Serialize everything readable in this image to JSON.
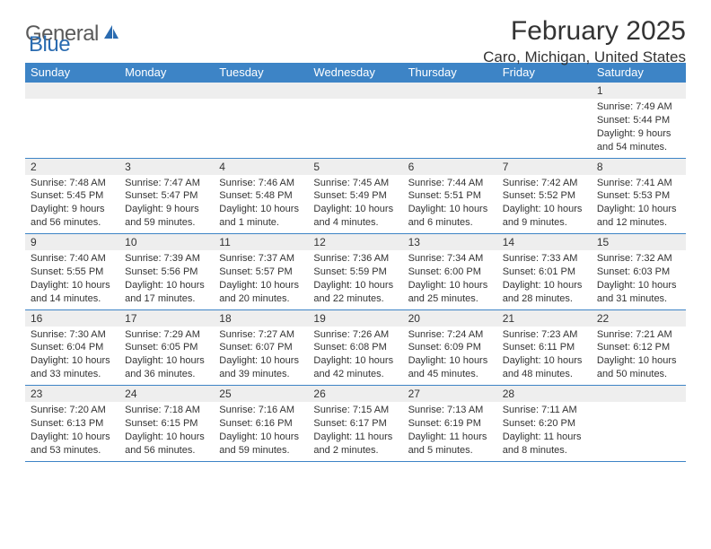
{
  "brand": {
    "text_gray": "General",
    "text_blue": "Blue",
    "gray_color": "#5a5a5a",
    "blue_color": "#2a6bb0",
    "icon_color": "#2a6bb0"
  },
  "header": {
    "month_title": "February 2025",
    "location": "Caro, Michigan, United States"
  },
  "styling": {
    "header_bg": "#3d84c6",
    "header_text": "#ffffff",
    "daynum_bg": "#eeeeee",
    "border_color": "#3d84c6",
    "body_text": "#333333",
    "dayhead_fontsize": 13,
    "daynum_fontsize": 12,
    "detail_fontsize": 11,
    "title_fontsize": 30,
    "location_fontsize": 17
  },
  "day_names": [
    "Sunday",
    "Monday",
    "Tuesday",
    "Wednesday",
    "Thursday",
    "Friday",
    "Saturday"
  ],
  "weeks": [
    [
      null,
      null,
      null,
      null,
      null,
      null,
      {
        "n": "1",
        "sr": "Sunrise: 7:49 AM",
        "ss": "Sunset: 5:44 PM",
        "dl": "Daylight: 9 hours and 54 minutes."
      }
    ],
    [
      {
        "n": "2",
        "sr": "Sunrise: 7:48 AM",
        "ss": "Sunset: 5:45 PM",
        "dl": "Daylight: 9 hours and 56 minutes."
      },
      {
        "n": "3",
        "sr": "Sunrise: 7:47 AM",
        "ss": "Sunset: 5:47 PM",
        "dl": "Daylight: 9 hours and 59 minutes."
      },
      {
        "n": "4",
        "sr": "Sunrise: 7:46 AM",
        "ss": "Sunset: 5:48 PM",
        "dl": "Daylight: 10 hours and 1 minute."
      },
      {
        "n": "5",
        "sr": "Sunrise: 7:45 AM",
        "ss": "Sunset: 5:49 PM",
        "dl": "Daylight: 10 hours and 4 minutes."
      },
      {
        "n": "6",
        "sr": "Sunrise: 7:44 AM",
        "ss": "Sunset: 5:51 PM",
        "dl": "Daylight: 10 hours and 6 minutes."
      },
      {
        "n": "7",
        "sr": "Sunrise: 7:42 AM",
        "ss": "Sunset: 5:52 PM",
        "dl": "Daylight: 10 hours and 9 minutes."
      },
      {
        "n": "8",
        "sr": "Sunrise: 7:41 AM",
        "ss": "Sunset: 5:53 PM",
        "dl": "Daylight: 10 hours and 12 minutes."
      }
    ],
    [
      {
        "n": "9",
        "sr": "Sunrise: 7:40 AM",
        "ss": "Sunset: 5:55 PM",
        "dl": "Daylight: 10 hours and 14 minutes."
      },
      {
        "n": "10",
        "sr": "Sunrise: 7:39 AM",
        "ss": "Sunset: 5:56 PM",
        "dl": "Daylight: 10 hours and 17 minutes."
      },
      {
        "n": "11",
        "sr": "Sunrise: 7:37 AM",
        "ss": "Sunset: 5:57 PM",
        "dl": "Daylight: 10 hours and 20 minutes."
      },
      {
        "n": "12",
        "sr": "Sunrise: 7:36 AM",
        "ss": "Sunset: 5:59 PM",
        "dl": "Daylight: 10 hours and 22 minutes."
      },
      {
        "n": "13",
        "sr": "Sunrise: 7:34 AM",
        "ss": "Sunset: 6:00 PM",
        "dl": "Daylight: 10 hours and 25 minutes."
      },
      {
        "n": "14",
        "sr": "Sunrise: 7:33 AM",
        "ss": "Sunset: 6:01 PM",
        "dl": "Daylight: 10 hours and 28 minutes."
      },
      {
        "n": "15",
        "sr": "Sunrise: 7:32 AM",
        "ss": "Sunset: 6:03 PM",
        "dl": "Daylight: 10 hours and 31 minutes."
      }
    ],
    [
      {
        "n": "16",
        "sr": "Sunrise: 7:30 AM",
        "ss": "Sunset: 6:04 PM",
        "dl": "Daylight: 10 hours and 33 minutes."
      },
      {
        "n": "17",
        "sr": "Sunrise: 7:29 AM",
        "ss": "Sunset: 6:05 PM",
        "dl": "Daylight: 10 hours and 36 minutes."
      },
      {
        "n": "18",
        "sr": "Sunrise: 7:27 AM",
        "ss": "Sunset: 6:07 PM",
        "dl": "Daylight: 10 hours and 39 minutes."
      },
      {
        "n": "19",
        "sr": "Sunrise: 7:26 AM",
        "ss": "Sunset: 6:08 PM",
        "dl": "Daylight: 10 hours and 42 minutes."
      },
      {
        "n": "20",
        "sr": "Sunrise: 7:24 AM",
        "ss": "Sunset: 6:09 PM",
        "dl": "Daylight: 10 hours and 45 minutes."
      },
      {
        "n": "21",
        "sr": "Sunrise: 7:23 AM",
        "ss": "Sunset: 6:11 PM",
        "dl": "Daylight: 10 hours and 48 minutes."
      },
      {
        "n": "22",
        "sr": "Sunrise: 7:21 AM",
        "ss": "Sunset: 6:12 PM",
        "dl": "Daylight: 10 hours and 50 minutes."
      }
    ],
    [
      {
        "n": "23",
        "sr": "Sunrise: 7:20 AM",
        "ss": "Sunset: 6:13 PM",
        "dl": "Daylight: 10 hours and 53 minutes."
      },
      {
        "n": "24",
        "sr": "Sunrise: 7:18 AM",
        "ss": "Sunset: 6:15 PM",
        "dl": "Daylight: 10 hours and 56 minutes."
      },
      {
        "n": "25",
        "sr": "Sunrise: 7:16 AM",
        "ss": "Sunset: 6:16 PM",
        "dl": "Daylight: 10 hours and 59 minutes."
      },
      {
        "n": "26",
        "sr": "Sunrise: 7:15 AM",
        "ss": "Sunset: 6:17 PM",
        "dl": "Daylight: 11 hours and 2 minutes."
      },
      {
        "n": "27",
        "sr": "Sunrise: 7:13 AM",
        "ss": "Sunset: 6:19 PM",
        "dl": "Daylight: 11 hours and 5 minutes."
      },
      {
        "n": "28",
        "sr": "Sunrise: 7:11 AM",
        "ss": "Sunset: 6:20 PM",
        "dl": "Daylight: 11 hours and 8 minutes."
      },
      null
    ]
  ]
}
